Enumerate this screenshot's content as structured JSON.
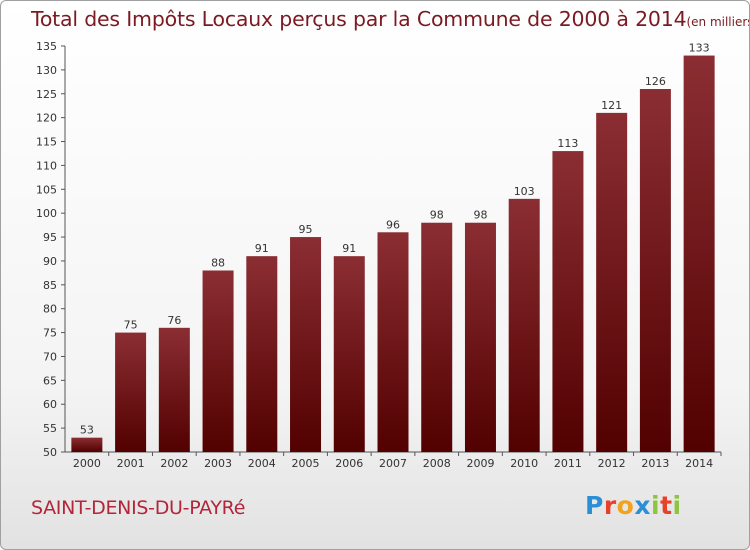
{
  "chart_data": {
    "type": "bar",
    "title": "Total des Impôts Locaux perçus par la Commune de 2000 à 2014",
    "subtitle": "(en milliers d'€)",
    "categories": [
      "2000",
      "2001",
      "2002",
      "2003",
      "2004",
      "2005",
      "2006",
      "2007",
      "2008",
      "2009",
      "2010",
      "2011",
      "2012",
      "2013",
      "2014"
    ],
    "values": [
      53,
      75,
      76,
      88,
      91,
      95,
      91,
      96,
      98,
      98,
      103,
      113,
      121,
      126,
      133
    ],
    "ylim": [
      50,
      135
    ],
    "yticks": [
      50,
      55,
      60,
      65,
      70,
      75,
      80,
      85,
      90,
      95,
      100,
      105,
      110,
      115,
      120,
      125,
      130,
      135
    ],
    "xlabel": "",
    "ylabel": ""
  },
  "commune": "SAINT-DENIS-DU-PAYRé",
  "logo": {
    "letters": [
      "P",
      "r",
      "o",
      "x",
      "i",
      "t",
      "i"
    ],
    "colors": [
      "#2a8fd6",
      "#e8412a",
      "#f2a21c",
      "#2a8fd6",
      "#8cc63f",
      "#e8412a",
      "#8cc63f"
    ]
  },
  "colors": {
    "bar_top": "#8b2e33",
    "bar_bottom": "#520000",
    "title": "#7b1a22",
    "commune": "#b3263a"
  }
}
